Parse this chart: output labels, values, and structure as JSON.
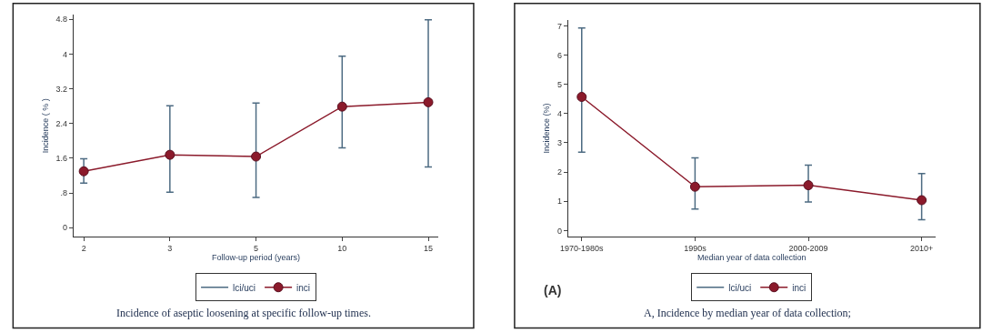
{
  "chart_data": [
    {
      "type": "line",
      "title": "Incidence of aseptic loosening at specific follow-up times.",
      "xlabel": "Follow-up period (years)",
      "ylabel": "Incidence ( % )",
      "categories": [
        "2",
        "3",
        "5",
        "10",
        "15"
      ],
      "ylim": [
        -0.2,
        4.9
      ],
      "yticks": [
        {
          "value": 0,
          "label": "0"
        },
        {
          "value": 0.8,
          "label": ".8"
        },
        {
          "value": 1.6,
          "label": "1.6"
        },
        {
          "value": 2.4,
          "label": "2.4"
        },
        {
          "value": 3.2,
          "label": "3.2"
        },
        {
          "value": 4,
          "label": "4"
        },
        {
          "value": 4.8,
          "label": "4.8"
        }
      ],
      "grid": false,
      "legend": "bottom",
      "marker": "circle",
      "line_style": "solid",
      "series": [
        {
          "name": "lci/uci",
          "color": "#4d6b82",
          "values": [
            null,
            null,
            null,
            null,
            null
          ]
        },
        {
          "name": "inci",
          "color": "#8b1a2b",
          "values": [
            1.3,
            1.68,
            1.64,
            2.79,
            2.89
          ],
          "errors": [
            [
              1.03,
              1.59
            ],
            [
              0.82,
              2.81
            ],
            [
              0.7,
              2.87
            ],
            [
              1.84,
              3.95
            ],
            [
              1.4,
              4.79
            ]
          ]
        }
      ]
    },
    {
      "type": "line",
      "title": "A, Incidence by median year of data collection;",
      "xlabel": "Median year of data collection",
      "ylabel": "Incidence (%)",
      "categories": [
        "1970-1980s",
        "1990s",
        "2000-2009",
        "2010+"
      ],
      "ylim": [
        -0.2,
        7.2
      ],
      "yticks": [
        0,
        1,
        2,
        3,
        4,
        5,
        6,
        7
      ],
      "grid": false,
      "legend": "bottom",
      "marker": "circle",
      "line_style": "solid",
      "annotations": [
        "(A)"
      ],
      "series": [
        {
          "name": "lci/uci",
          "color": "#4d6b82",
          "values": [
            null,
            null,
            null,
            null
          ]
        },
        {
          "name": "inci",
          "color": "#8b1a2b",
          "values": [
            4.57,
            1.5,
            1.55,
            1.04
          ],
          "errors": [
            [
              2.68,
              6.93
            ],
            [
              0.74,
              2.49
            ],
            [
              0.98,
              2.24
            ],
            [
              0.37,
              1.95
            ]
          ]
        }
      ]
    }
  ]
}
